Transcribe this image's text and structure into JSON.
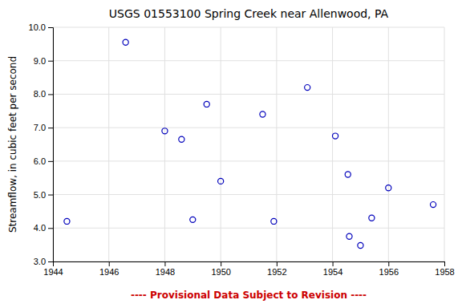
{
  "chart_data": {
    "type": "scatter",
    "title": "USGS 01553100 Spring Creek near Allenwood, PA",
    "ylabel": "Streamflow, in cubic feet per second",
    "annotation": "---- Provisional Data Subject to Revision ----",
    "x": [
      1944.5,
      1946.6,
      1948.0,
      1948.6,
      1949.0,
      1949.5,
      1950.0,
      1951.5,
      1951.9,
      1953.1,
      1954.1,
      1954.55,
      1954.6,
      1955.0,
      1955.4,
      1956.0,
      1957.6
    ],
    "values": [
      4.2,
      9.55,
      6.9,
      6.65,
      4.25,
      7.7,
      5.4,
      7.4,
      4.2,
      8.2,
      6.75,
      5.6,
      3.75,
      3.48,
      4.3,
      5.2,
      4.7
    ],
    "color": "#0000BB",
    "marker": "circle",
    "xlim": [
      1944,
      1958
    ],
    "ylim": [
      3.0,
      10.0
    ],
    "xticks": [
      1944,
      1946,
      1948,
      1950,
      1952,
      1954,
      1956,
      1958
    ],
    "yticks": [
      {
        "value": 3.0,
        "label": "3.0"
      },
      {
        "value": 4.0,
        "label": "4.0"
      },
      {
        "value": 5.0,
        "label": "5.0"
      },
      {
        "value": 6.0,
        "label": "6.0"
      },
      {
        "value": 7.0,
        "label": "7.0"
      },
      {
        "value": 8.0,
        "label": "8.0"
      },
      {
        "value": 9.0,
        "label": "9.0"
      },
      {
        "value": 10.0,
        "label": "10.0"
      }
    ],
    "grid": true
  }
}
